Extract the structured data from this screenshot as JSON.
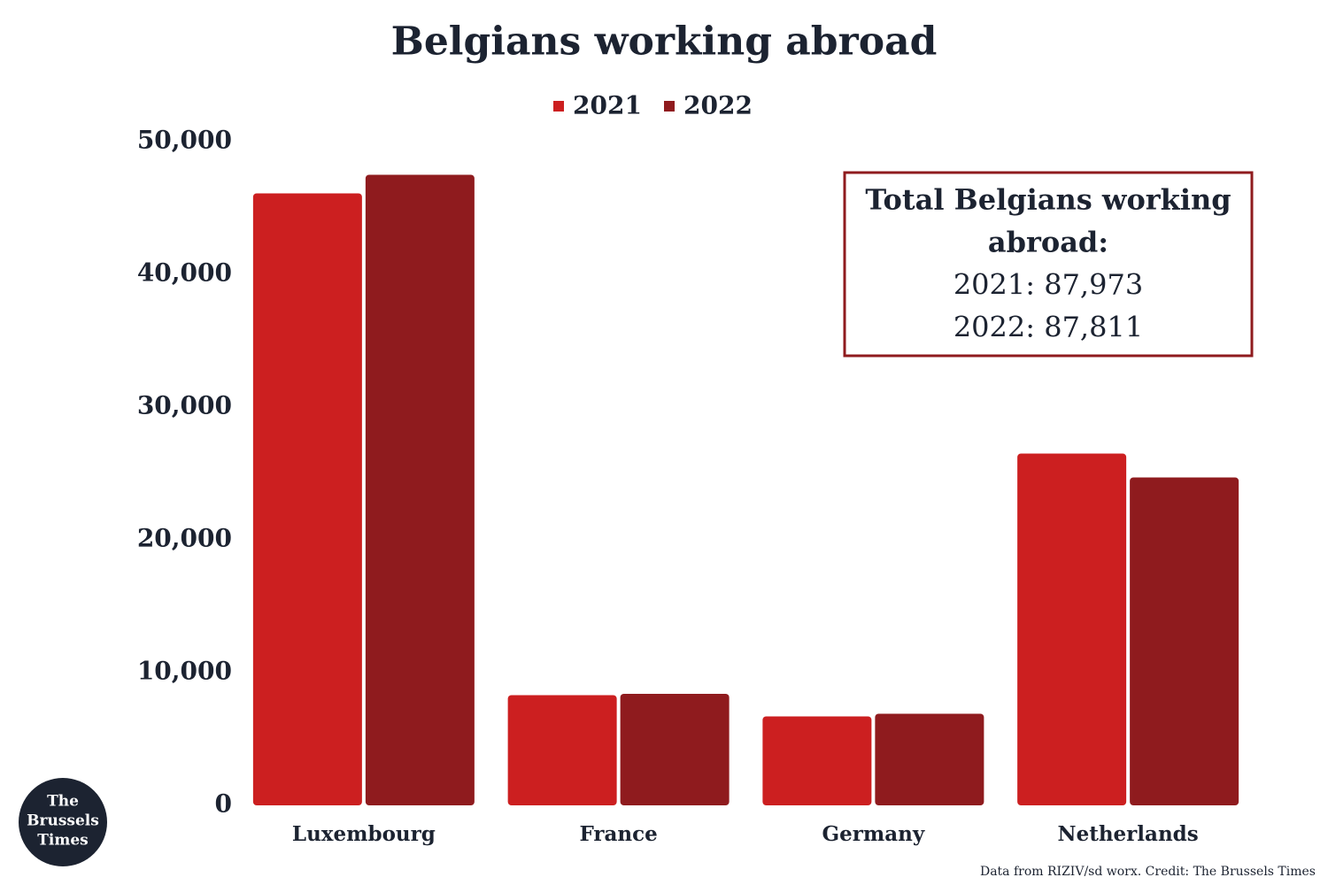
{
  "chart_data": {
    "type": "bar",
    "title": "Belgians working abroad",
    "categories": [
      "Luxembourg",
      "France",
      "Germany",
      "Netherlands"
    ],
    "series": [
      {
        "name": "2021",
        "color": "#cc1f20",
        "values": [
          46100,
          8300,
          6700,
          26500
        ]
      },
      {
        "name": "2022",
        "color": "#8f1b1e",
        "values": [
          47500,
          8400,
          6900,
          24700
        ]
      }
    ],
    "ylim": [
      0,
      50000
    ],
    "yticks": [
      0,
      {
        "value": 10000,
        "label": "10,000"
      },
      {
        "value": 20000,
        "label": "20,000"
      },
      {
        "value": 30000,
        "label": "30,000"
      },
      {
        "value": 40000,
        "label": "40,000"
      },
      {
        "value": 50000,
        "label": "50,000"
      }
    ],
    "grid": false,
    "legend": "top",
    "annotation": [
      "Total Belgians working",
      "abroad:",
      "2021: 87,973",
      "2022: 87,811"
    ],
    "source": "Data from RIZIV/sd worx. Credit: The Brussels Times",
    "logo": [
      "The",
      "Brussels",
      "Times"
    ]
  }
}
